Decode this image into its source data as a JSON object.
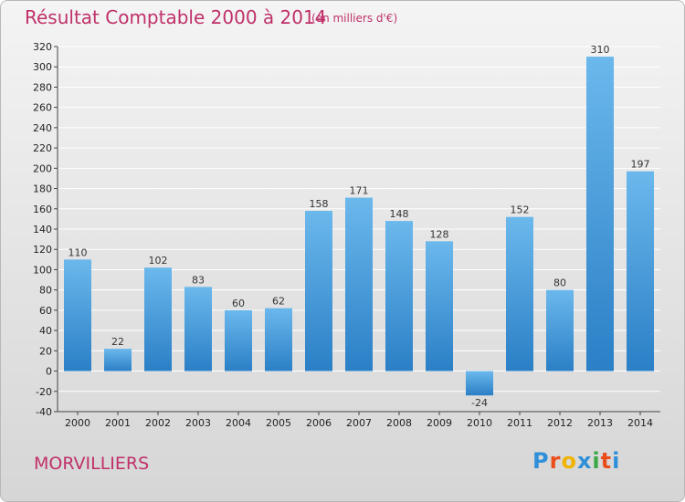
{
  "header": {
    "title": "Résultat Comptable 2000 à 2014",
    "subtitle": "(en milliers d'€)"
  },
  "footer": {
    "commune": "MORVILLIERS",
    "logo": "Proxiti"
  },
  "colors": {
    "title": "#c0306a",
    "bar_top": "#6bb8ec",
    "bar_bottom": "#2a7fc6",
    "grid": "#ffffff"
  },
  "chart_data": {
    "type": "bar",
    "categories": [
      "2000",
      "2001",
      "2002",
      "2003",
      "2004",
      "2005",
      "2006",
      "2007",
      "2008",
      "2009",
      "2010",
      "2011",
      "2012",
      "2013",
      "2014"
    ],
    "values": [
      110,
      22,
      102,
      83,
      60,
      62,
      158,
      171,
      148,
      128,
      -24,
      152,
      80,
      310,
      197
    ],
    "title": "Résultat Comptable 2000 à 2014",
    "ylim": [
      -40,
      320
    ],
    "yticks": [
      -40,
      -20,
      0,
      20,
      40,
      60,
      80,
      100,
      120,
      140,
      160,
      180,
      200,
      220,
      240,
      260,
      280,
      300,
      320
    ],
    "grid": true,
    "data_labels": true
  }
}
